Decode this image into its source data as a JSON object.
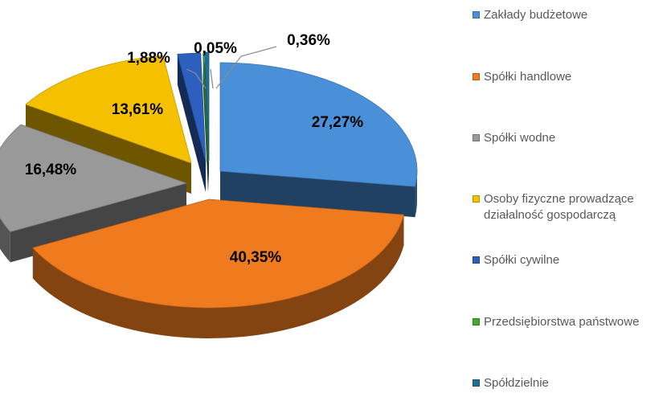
{
  "chart_data": {
    "type": "pie",
    "categories": [
      "Zakłady budżetowe",
      "Spółki handlowe",
      "Spółki wodne",
      "Osoby fizyczne prowadzące działalność gospodarczą",
      "Spółki cywilne",
      "Przedsiębiorstwa państwowe",
      "Spółdzielnie"
    ],
    "values": [
      27.27,
      40.35,
      16.48,
      13.61,
      1.88,
      0.05,
      0.36
    ],
    "data_labels": [
      "27,27%",
      "40,35%",
      "16,48%",
      "13,61%",
      "1,88%",
      "0,05%",
      "0,36%"
    ],
    "colors": [
      "#4a90d9",
      "#f07b1e",
      "#999999",
      "#f5c000",
      "#2d5fbf",
      "#44a829",
      "#1f6f99"
    ],
    "legend_position": "right",
    "style": "3d-exploded"
  },
  "legend": {
    "items": [
      {
        "label": "Zakłady budżetowe",
        "color": "#4a90d9"
      },
      {
        "label": "Spółki handlowe",
        "color": "#f07b1e"
      },
      {
        "label": "Spółki wodne",
        "color": "#999999"
      },
      {
        "label": "Osoby fizyczne prowadzące działalność gospodarczą",
        "color": "#f5c000"
      },
      {
        "label": "Spółki cywilne",
        "color": "#2d5fbf"
      },
      {
        "label": "Przedsiębiorstwa państwowe",
        "color": "#44a829"
      },
      {
        "label": "Spółdzielnie",
        "color": "#1f6f99"
      }
    ]
  }
}
